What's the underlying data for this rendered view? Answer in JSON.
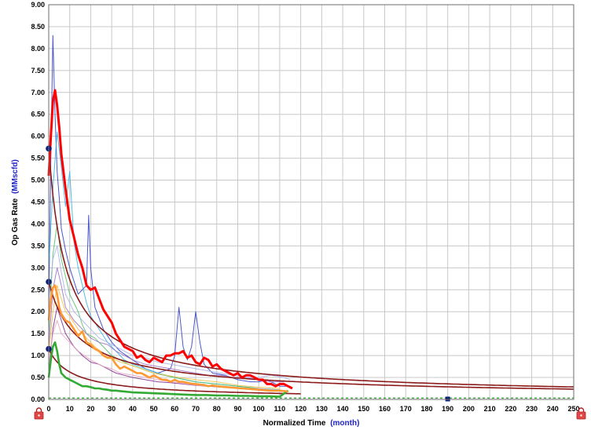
{
  "chart_data": {
    "type": "line",
    "xlabel": "Normalized Time",
    "xunit": "(month)",
    "ylabel": "Op Gas Rate",
    "yunit": "(MMscfd)",
    "xlim": [
      0,
      250
    ],
    "ylim": [
      0,
      9
    ],
    "x_ticks": [
      0,
      10,
      20,
      30,
      40,
      50,
      60,
      70,
      80,
      90,
      100,
      110,
      120,
      130,
      140,
      150,
      160,
      170,
      180,
      190,
      200,
      210,
      220,
      230,
      240,
      250
    ],
    "y_ticks": [
      "0.00",
      "0.50",
      "1.00",
      "1.50",
      "2.00",
      "2.50",
      "3.00",
      "3.50",
      "4.00",
      "4.50",
      "5.00",
      "5.50",
      "6.00",
      "6.50",
      "7.00",
      "7.50",
      "8.00",
      "8.50",
      "9.00"
    ],
    "grid": true,
    "colors": {
      "high_case": "#ff0000",
      "mid_case": "#ff9933",
      "low_case": "#33aa33",
      "decline_fit": "#8b1a1a",
      "marker": "#10207a",
      "wells": [
        "#2b3cc4",
        "#36b3e0",
        "#4fbf6a",
        "#f0c040",
        "#9b6fc0",
        "#a8b0e8",
        "#7a2a8a",
        "#e8a0c0"
      ]
    },
    "series": [
      {
        "role": "high_case",
        "x": [
          0,
          1,
          2,
          3,
          4,
          5,
          6,
          7,
          8,
          9,
          10,
          12,
          14,
          16,
          18,
          20,
          22,
          24,
          26,
          28,
          30,
          32,
          34,
          36,
          38,
          40,
          42,
          44,
          46,
          48,
          50,
          52,
          54,
          56,
          58,
          60,
          62,
          64,
          66,
          68,
          70,
          72,
          74,
          76,
          78,
          80,
          82,
          84,
          86,
          88,
          90,
          92,
          94,
          96,
          98,
          100,
          102,
          104,
          106,
          108,
          110,
          112,
          114,
          116
        ],
        "y": [
          5.1,
          6.0,
          6.8,
          7.05,
          6.7,
          6.2,
          5.6,
          5.2,
          4.8,
          4.45,
          4.1,
          3.7,
          3.3,
          3.0,
          2.6,
          2.5,
          2.55,
          2.3,
          2.05,
          1.9,
          1.75,
          1.5,
          1.35,
          1.2,
          1.15,
          1.1,
          0.95,
          1.0,
          0.9,
          0.85,
          0.95,
          0.9,
          0.85,
          1.0,
          1.0,
          1.05,
          1.05,
          1.1,
          0.95,
          1.0,
          0.85,
          0.8,
          0.95,
          0.9,
          0.75,
          0.8,
          0.7,
          0.65,
          0.6,
          0.55,
          0.6,
          0.5,
          0.55,
          0.55,
          0.5,
          0.45,
          0.45,
          0.35,
          0.35,
          0.3,
          0.35,
          0.35,
          0.3,
          0.25
        ]
      },
      {
        "role": "mid_case",
        "x": [
          0,
          1,
          2,
          3,
          4,
          5,
          6,
          8,
          10,
          12,
          14,
          16,
          18,
          20,
          22,
          24,
          26,
          28,
          30,
          32,
          34,
          36,
          38,
          40,
          42,
          44,
          46,
          48,
          50,
          52,
          54,
          56,
          58,
          60,
          62,
          64,
          66,
          68,
          70,
          72,
          74,
          76,
          78,
          80,
          85,
          90,
          95,
          100,
          105,
          110,
          114
        ],
        "y": [
          1.8,
          2.3,
          2.55,
          2.6,
          2.4,
          2.1,
          1.95,
          1.8,
          1.75,
          1.6,
          1.45,
          1.55,
          1.3,
          1.25,
          1.15,
          1.1,
          1.0,
          0.95,
          0.95,
          0.8,
          0.7,
          0.75,
          0.7,
          0.65,
          0.6,
          0.6,
          0.55,
          0.5,
          0.55,
          0.5,
          0.45,
          0.45,
          0.4,
          0.45,
          0.4,
          0.4,
          0.38,
          0.36,
          0.35,
          0.34,
          0.33,
          0.3,
          0.32,
          0.3,
          0.28,
          0.26,
          0.24,
          0.22,
          0.2,
          0.2,
          0.18
        ]
      },
      {
        "role": "low_case",
        "x": [
          0,
          1,
          2,
          3,
          4,
          5,
          6,
          8,
          10,
          12,
          14,
          16,
          18,
          20,
          22,
          24,
          26,
          28,
          30,
          32,
          34,
          36,
          38,
          40,
          45,
          50,
          55,
          60,
          65,
          70,
          75,
          80,
          85,
          90,
          95,
          100,
          105,
          110,
          114
        ],
        "y": [
          0.5,
          0.9,
          1.2,
          1.3,
          1.1,
          0.8,
          0.6,
          0.5,
          0.45,
          0.4,
          0.35,
          0.3,
          0.3,
          0.28,
          0.25,
          0.25,
          0.23,
          0.22,
          0.2,
          0.2,
          0.19,
          0.18,
          0.17,
          0.16,
          0.15,
          0.14,
          0.13,
          0.12,
          0.11,
          0.1,
          0.1,
          0.09,
          0.09,
          0.08,
          0.08,
          0.07,
          0.07,
          0.06,
          0.2
        ]
      }
    ],
    "fit_curves": [
      {
        "role": "decline_fit",
        "qi": 5.75,
        "b": 1.2,
        "di": 0.12,
        "x_end": 250
      },
      {
        "role": "decline_fit",
        "qi": 2.68,
        "b": 1.3,
        "di": 0.07,
        "x_end": 250
      },
      {
        "role": "decline_fit",
        "qi": 1.15,
        "b": 1.2,
        "di": 0.09,
        "x_end": 120
      }
    ],
    "well_traces": [
      {
        "x": [
          0,
          1,
          2,
          3,
          4,
          5,
          6,
          8,
          10,
          14,
          18,
          19,
          20,
          22,
          26,
          30,
          34,
          40,
          46,
          52,
          58,
          60,
          62,
          64,
          66,
          68,
          70,
          72,
          74,
          78,
          84,
          90,
          96,
          100,
          104,
          110,
          114
        ],
        "y": [
          2.0,
          5.5,
          8.3,
          6.5,
          5.2,
          4.6,
          3.9,
          3.4,
          3.0,
          2.4,
          2.6,
          4.2,
          3.0,
          2.1,
          1.6,
          1.3,
          1.1,
          0.9,
          0.7,
          0.6,
          0.7,
          1.0,
          2.1,
          1.2,
          0.9,
          1.2,
          2.0,
          1.3,
          0.8,
          0.6,
          0.55,
          0.45,
          0.4,
          0.4,
          0.45,
          0.3,
          0.3
        ]
      },
      {
        "x": [
          0,
          2,
          4,
          6,
          8,
          10,
          12,
          14,
          16,
          18,
          20,
          24,
          28,
          32,
          36,
          40,
          46,
          52,
          60,
          70,
          80,
          90,
          100,
          110
        ],
        "y": [
          3.0,
          4.8,
          6.1,
          5.3,
          4.4,
          5.2,
          3.6,
          3.0,
          2.6,
          2.2,
          1.9,
          1.6,
          1.3,
          1.1,
          0.9,
          0.8,
          0.7,
          0.6,
          0.5,
          0.4,
          0.35,
          0.3,
          0.25,
          0.22
        ]
      },
      {
        "x": [
          0,
          2,
          4,
          6,
          8,
          10,
          12,
          14,
          16,
          18,
          22,
          26,
          30,
          34,
          38,
          44,
          50,
          60,
          70,
          80,
          90,
          100
        ],
        "y": [
          1.5,
          3.3,
          4.0,
          3.2,
          2.8,
          2.4,
          2.2,
          2.0,
          1.7,
          1.5,
          1.4,
          1.2,
          1.0,
          0.9,
          0.8,
          0.7,
          0.6,
          0.5,
          0.4,
          0.35,
          0.3,
          0.25
        ]
      },
      {
        "x": [
          0,
          2,
          4,
          6,
          8,
          10,
          14,
          18,
          22,
          26,
          30,
          34,
          38,
          44,
          50,
          56,
          62,
          70,
          80,
          90,
          100,
          110
        ],
        "y": [
          1.0,
          2.0,
          2.6,
          2.3,
          2.0,
          1.9,
          1.6,
          1.4,
          1.2,
          1.05,
          0.95,
          0.85,
          0.8,
          0.7,
          0.6,
          0.55,
          0.5,
          0.45,
          0.4,
          0.32,
          0.28,
          0.25
        ]
      },
      {
        "x": [
          0,
          2,
          4,
          6,
          8,
          12,
          16,
          20,
          24,
          28,
          32,
          36,
          40,
          46,
          52,
          58,
          64,
          70,
          76,
          82,
          88,
          94,
          100,
          106,
          112
        ],
        "y": [
          1.2,
          2.5,
          3.0,
          2.6,
          2.1,
          1.8,
          1.6,
          1.4,
          1.3,
          1.25,
          1.1,
          1.0,
          0.9,
          0.8,
          0.75,
          0.7,
          0.65,
          0.6,
          0.55,
          0.55,
          0.5,
          0.5,
          0.45,
          0.4,
          0.4
        ]
      },
      {
        "x": [
          0,
          2,
          4,
          6,
          8,
          12,
          16,
          20,
          24,
          28,
          32,
          36,
          40,
          46,
          52,
          58,
          64,
          70,
          76,
          82,
          88,
          94,
          100,
          106,
          112,
          115
        ],
        "y": [
          2.2,
          3.2,
          3.5,
          2.9,
          2.4,
          2.0,
          1.8,
          1.6,
          1.4,
          1.3,
          1.2,
          1.1,
          1.0,
          0.95,
          0.85,
          0.8,
          0.75,
          0.7,
          0.65,
          0.6,
          0.55,
          0.5,
          0.5,
          0.55,
          0.5,
          0.45
        ]
      },
      {
        "x": [
          0,
          2,
          4,
          6,
          8,
          12,
          16,
          20,
          24,
          28,
          32,
          36,
          40,
          46,
          52,
          58,
          64,
          70,
          76,
          82,
          88,
          94,
          100,
          106,
          112
        ],
        "y": [
          0.6,
          1.6,
          2.1,
          1.8,
          1.5,
          1.2,
          1.0,
          0.85,
          0.8,
          0.7,
          0.6,
          0.55,
          0.5,
          0.45,
          0.4,
          0.38,
          0.35,
          0.32,
          0.3,
          0.28,
          0.26,
          0.24,
          0.22,
          0.2,
          0.2
        ]
      },
      {
        "x": [
          0,
          2,
          4,
          6,
          10,
          14,
          20,
          26,
          30,
          34,
          40,
          46,
          52,
          58,
          66,
          74,
          82,
          90,
          100,
          110
        ],
        "y": [
          0.8,
          1.5,
          1.8,
          1.5,
          1.3,
          1.1,
          0.9,
          0.75,
          0.7,
          0.6,
          0.55,
          0.5,
          0.45,
          0.4,
          0.35,
          0.3,
          0.3,
          0.25,
          0.25,
          0.2
        ]
      }
    ],
    "markers": [
      {
        "x": 0,
        "y": 5.72
      },
      {
        "x": 0,
        "y": 2.68
      },
      {
        "x": 0,
        "y": 1.15
      },
      {
        "x": 190,
        "y": 0.0
      }
    ]
  }
}
